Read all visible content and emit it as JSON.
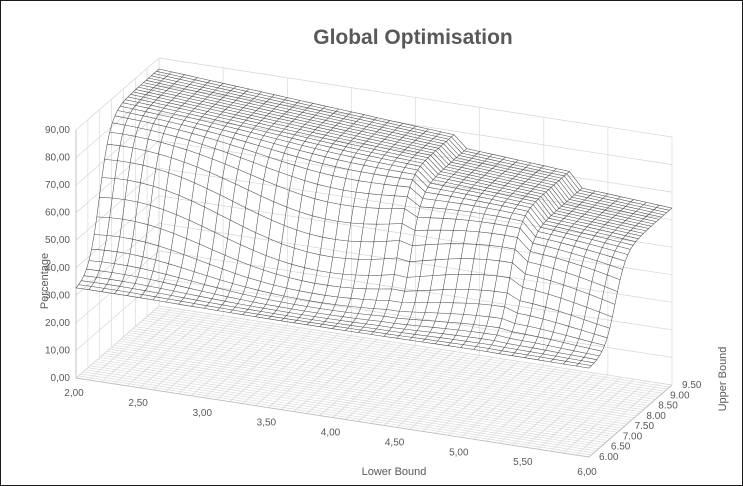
{
  "chart_data": {
    "type": "surface",
    "title": "Global Optimisation",
    "xlabel": "Lower Bound",
    "ylabel": "Upper Bound",
    "zlabel": "Percentage",
    "x_ticks": [
      "2,00",
      "2,50",
      "3,00",
      "3,50",
      "4,00",
      "4,50",
      "5,00",
      "5,50",
      "6,00"
    ],
    "y_ticks": [
      "6.00",
      "6.50",
      "7.00",
      "7.50",
      "8.00",
      "8.50",
      "9.00",
      "9.50"
    ],
    "z_ticks": [
      "0,00",
      "10,00",
      "20,00",
      "30,00",
      "40,00",
      "50,00",
      "60,00",
      "70,00",
      "80,00",
      "90,00"
    ],
    "xlim": [
      2,
      6
    ],
    "ylim": [
      6,
      9.5
    ],
    "zlim": [
      0,
      90
    ],
    "grid": true,
    "wireframe": true,
    "series": [
      {
        "values_by_lower_bound": {
          "x": [
            2.0,
            2.5,
            3.0,
            3.5,
            4.0,
            4.5,
            5.0,
            5.5,
            6.0
          ],
          "z_at_upper_6": [
            30,
            28,
            27,
            26,
            25,
            24,
            23,
            22,
            20
          ],
          "z_at_upper_9_5": [
            87,
            86,
            85,
            84,
            82,
            80,
            78,
            76,
            72
          ]
        }
      }
    ]
  }
}
